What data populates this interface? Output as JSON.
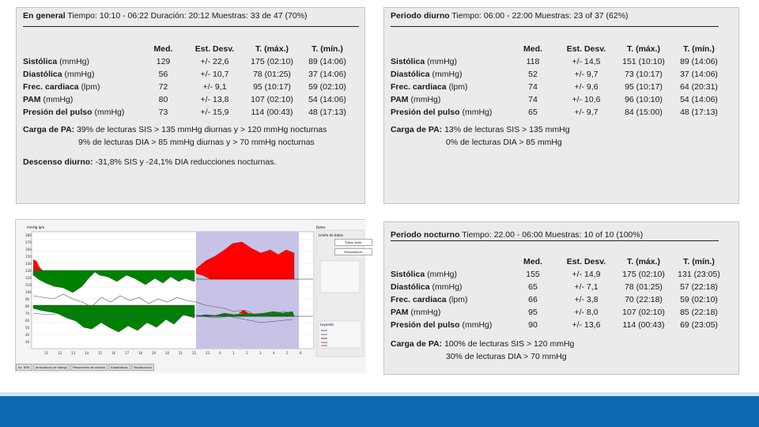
{
  "panels": {
    "general": {
      "heading_bold": "En general",
      "heading_rest": "Tiempo: 10:10 - 06:22 Duración: 20:12 Muestras: 33 de 47 (70%)",
      "columns": [
        "Med.",
        "Est. Desv.",
        "T. (máx.)",
        "T. (mín.)"
      ],
      "rows": [
        {
          "label": "Sistólica",
          "unit": "(mmHg)",
          "med": "129",
          "desv": "+/- 22,6",
          "max": "175 (02:10)",
          "min": "89 (14:06)"
        },
        {
          "label": "Diastólica",
          "unit": "(mmHg)",
          "med": "56",
          "desv": "+/- 10,7",
          "max": "78 (01:25)",
          "min": "37 (14:06)"
        },
        {
          "label": "Frec. cardiaca",
          "unit": "(lpm)",
          "med": "72",
          "desv": "+/- 9,1",
          "max": "95 (10:17)",
          "min": "59 (02:10)"
        },
        {
          "label": "PAM",
          "unit": "(mmHg)",
          "med": "80",
          "desv": "+/- 13,8",
          "max": "107 (02:10)",
          "min": "54 (14:06)"
        },
        {
          "label": "Presión del pulso",
          "unit": "(mmHg)",
          "med": "73",
          "desv": "+/- 15,9",
          "max": "114 (00:43)",
          "min": "48 (17:13)"
        }
      ],
      "carga_bold": "Carga de PA:",
      "carga_line1": "39% de lecturas SIS > 135 mmHg diurnas y > 120 mmHg nocturnas",
      "carga_line2": "9% de lecturas DIA > 85 mmHg diurnas y > 70 mmHg nocturnas",
      "descenso_bold": "Descenso diurno:",
      "descenso_rest": "-31,8% SIS y -24,1% DIA reducciones nocturnas."
    },
    "diurno": {
      "heading_bold": "Periodo diurno",
      "heading_rest": "Tiempo: 06:00 - 22:00 Muestras: 23 of 37 (62%)",
      "columns": [
        "Med.",
        "Est. Desv.",
        "T. (máx.)",
        "T. (mín.)"
      ],
      "rows": [
        {
          "label": "Sistólica",
          "unit": "(mmHg)",
          "med": "118",
          "desv": "+/- 14,5",
          "max": "151 (10:10)",
          "min": "89 (14:06)"
        },
        {
          "label": "Diastólica",
          "unit": "(mmHg)",
          "med": "52",
          "desv": "+/- 9,7",
          "max": "73 (10:17)",
          "min": "37 (14:06)"
        },
        {
          "label": "Frec. cardiaca",
          "unit": "(lpm)",
          "med": "74",
          "desv": "+/- 9,6",
          "max": "95 (10:17)",
          "min": "64 (20:31)"
        },
        {
          "label": "PAM",
          "unit": "(mmHg)",
          "med": "74",
          "desv": "+/- 10,6",
          "max": "96 (10:10)",
          "min": "54 (14:06)"
        },
        {
          "label": "Presión del pulso",
          "unit": "(mmHg)",
          "med": "65",
          "desv": "+/- 9,7",
          "max": "84 (15:00)",
          "min": "48 (17:13)"
        }
      ],
      "carga_bold": "Carga de PA:",
      "carga_line1": "13% de lecturas SIS > 135 mmHg",
      "carga_line2": "0% de lecturas DIA > 85 mmHg"
    },
    "nocturno": {
      "heading_bold": "Periodo nocturno",
      "heading_rest": "Tiempo: 22.00 - 06:00 Muestras: 10 of 10 (100%)",
      "columns": [
        "Med.",
        "Est. Desv.",
        "T. (máx.)",
        "T. (mín.)"
      ],
      "rows": [
        {
          "label": "Sistólica",
          "unit": "(mmHg)",
          "med": "155",
          "desv": "+/- 14,9",
          "max": "175 (02:10)",
          "min": "131 (23:05)"
        },
        {
          "label": "Diastólica",
          "unit": "(mmHg)",
          "med": "65",
          "desv": "+/- 7,1",
          "max": "78 (01:25)",
          "min": "57 (22:18)"
        },
        {
          "label": "Frec. cardiaca",
          "unit": "(lpm)",
          "med": "66",
          "desv": "+/- 3,8",
          "max": "70 (22:18)",
          "min": "59 (02:10)"
        },
        {
          "label": "PAM",
          "unit": "(mmHg)",
          "med": "95",
          "desv": "+/- 8,0",
          "max": "107 (02:10)",
          "min": "85 (22:18)"
        },
        {
          "label": "Presión del pulso",
          "unit": "(mmHg)",
          "med": "90",
          "desv": "+/- 13,6",
          "max": "114 (00:43)",
          "min": "69 (23:05)"
        }
      ],
      "carga_bold": "Carga de PA:",
      "carga_line1": "100% de lecturas SIS > 120 mmHg",
      "carga_line2": "30% de lecturas DIA > 70 mmHg"
    }
  },
  "chart": {
    "ylabel": "mmHg lpm",
    "panel_label": "Datos",
    "y_ticks": [
      "180",
      "170",
      "160",
      "150",
      "140",
      "130",
      "120",
      "110",
      "100",
      "90",
      "80",
      "70",
      "60",
      "50",
      "40",
      "30"
    ],
    "x_ticks": [
      "11",
      "12",
      "13",
      "14",
      "15",
      "16",
      "17",
      "18",
      "19",
      "20",
      "21",
      "22",
      "23",
      "0",
      "1",
      "2",
      "3",
      "4",
      "5",
      "6"
    ],
    "side_title": "Límite de datos",
    "side_btn1": "Editar límite",
    "side_btn2": "Reestablecer",
    "legend_title": "Leyenda",
    "tabs": [
      "Ax. BPA",
      "Ambulatorio de trabajo",
      "Resúmenes de medida",
      "Estadísticas",
      "Visualización"
    ],
    "colors": {
      "above": "#ff0000",
      "below": "#008000",
      "night": "#c7c3e6"
    }
  },
  "footer": {
    "color": "#0d68b1"
  }
}
